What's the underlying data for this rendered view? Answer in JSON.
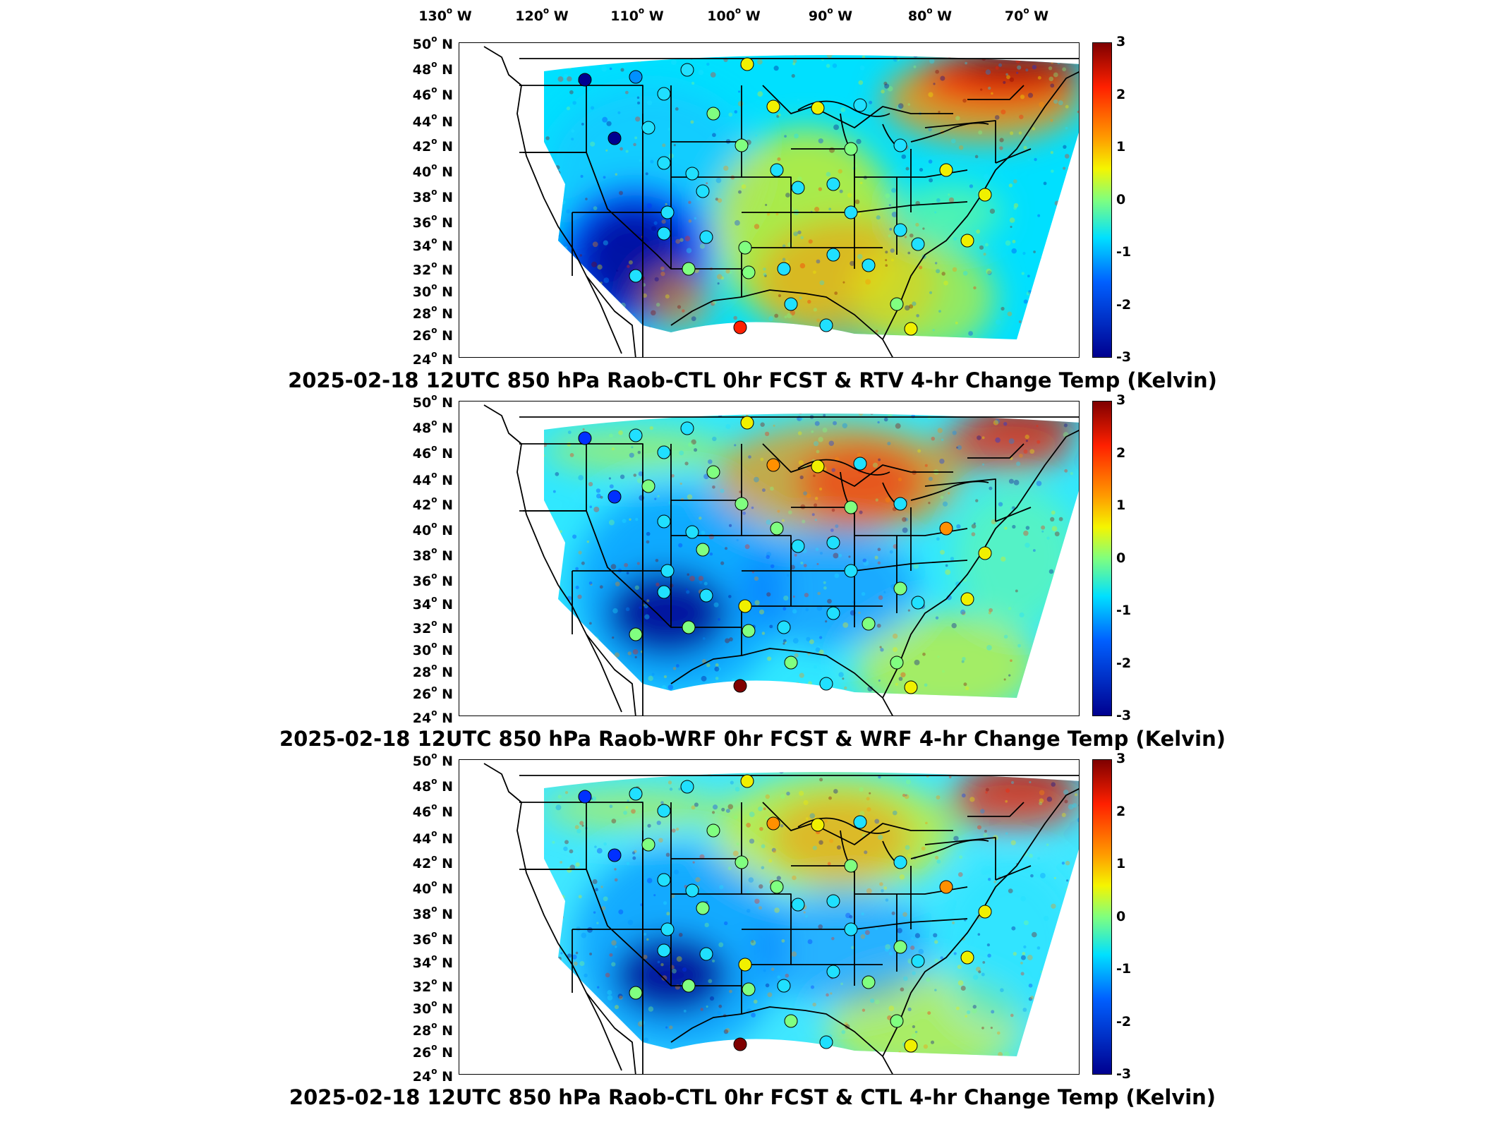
{
  "longitude_labels": [
    "130",
    "120",
    "110",
    "100",
    "90",
    "80",
    "70"
  ],
  "longitude_suffix": "W",
  "latitude_labels": [
    "50",
    "48",
    "46",
    "44",
    "42",
    "40",
    "38",
    "36",
    "34",
    "32",
    "30",
    "28",
    "26",
    "24"
  ],
  "latitude_suffix": "N",
  "colorbar": {
    "ticks": [
      "3",
      "2",
      "1",
      "0",
      "-1",
      "-2",
      "-3"
    ],
    "colormap": "jet",
    "range": [
      -3,
      3
    ]
  },
  "colors": {
    "dark_red": "#7f0000",
    "red": "#ff2000",
    "orange": "#ff9a00",
    "yellow": "#f5f500",
    "green": "#7fff7f",
    "cyan": "#00e0ff",
    "blue": "#0060ff",
    "dark_blue": "#00008f"
  },
  "panels": [
    {
      "title": "2025-02-18 12UTC 850 hPa Raob-CTL 0hr FCST & RTV 4-hr Change Temp (Kelvin)"
    },
    {
      "title": "2025-02-18 12UTC 850 hPa Raob-WRF 0hr FCST & WRF 4-hr Change Temp (Kelvin)"
    },
    {
      "title": "2025-02-18 12UTC 850 hPa Raob-CTL 0hr FCST & CTL 4-hr Change Temp (Kelvin)"
    }
  ]
}
